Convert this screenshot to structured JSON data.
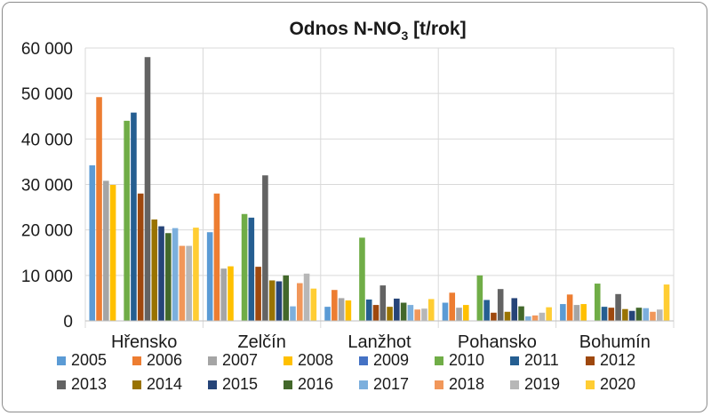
{
  "chart_data": {
    "type": "bar",
    "title": "Odnos N-NO",
    "title_sub": "3",
    "title_suffix": " [t/rok]",
    "xlabel": "",
    "ylabel": "",
    "ylim": [
      0,
      60000
    ],
    "yticks": [
      0,
      10000,
      20000,
      30000,
      40000,
      50000,
      60000
    ],
    "ytick_labels": [
      "0",
      "10 000",
      "20 000",
      "30 000",
      "40 000",
      "50 000",
      "60 000"
    ],
    "grid": true,
    "legend_position": "bottom",
    "categories": [
      "Hřensko",
      "Zelčín",
      "Lanžhot",
      "Pohansko",
      "Bohumín"
    ],
    "series": [
      {
        "name": "2005",
        "color": "#5b9bd5",
        "values": [
          34200,
          19500,
          3100,
          4000,
          3700
        ]
      },
      {
        "name": "2006",
        "color": "#ed7d31",
        "values": [
          49200,
          28000,
          6800,
          6200,
          5800
        ]
      },
      {
        "name": "2007",
        "color": "#a5a5a5",
        "values": [
          30800,
          11500,
          5000,
          2900,
          3500
        ]
      },
      {
        "name": "2008",
        "color": "#ffc000",
        "values": [
          29900,
          12000,
          4500,
          3500,
          3700
        ]
      },
      {
        "name": "2009",
        "color": "#4472c4",
        "values": [
          0,
          0,
          0,
          0,
          0
        ]
      },
      {
        "name": "2010",
        "color": "#70ad47",
        "values": [
          44000,
          23500,
          18300,
          10000,
          8200
        ]
      },
      {
        "name": "2011",
        "color": "#255e91",
        "values": [
          45800,
          22700,
          4700,
          4600,
          3100
        ]
      },
      {
        "name": "2012",
        "color": "#9e480e",
        "values": [
          28000,
          11900,
          3500,
          1800,
          2900
        ]
      },
      {
        "name": "2013",
        "color": "#636363",
        "values": [
          58000,
          32000,
          7800,
          7000,
          5900
        ]
      },
      {
        "name": "2014",
        "color": "#997300",
        "values": [
          22300,
          8900,
          3100,
          2000,
          2600
        ]
      },
      {
        "name": "2015",
        "color": "#264478",
        "values": [
          20800,
          8700,
          4900,
          5000,
          2200
        ]
      },
      {
        "name": "2016",
        "color": "#43682b",
        "values": [
          19300,
          10000,
          4000,
          3200,
          2900
        ]
      },
      {
        "name": "2017",
        "color": "#7cafdd",
        "values": [
          20400,
          3200,
          3500,
          1000,
          2800
        ]
      },
      {
        "name": "2018",
        "color": "#f1975a",
        "values": [
          16500,
          8300,
          2500,
          1200,
          2000
        ]
      },
      {
        "name": "2019",
        "color": "#b7b7b7",
        "values": [
          16500,
          10400,
          2700,
          1800,
          2500
        ]
      },
      {
        "name": "2020",
        "color": "#ffcd33",
        "values": [
          20500,
          7100,
          4800,
          3000,
          8000
        ]
      }
    ]
  }
}
